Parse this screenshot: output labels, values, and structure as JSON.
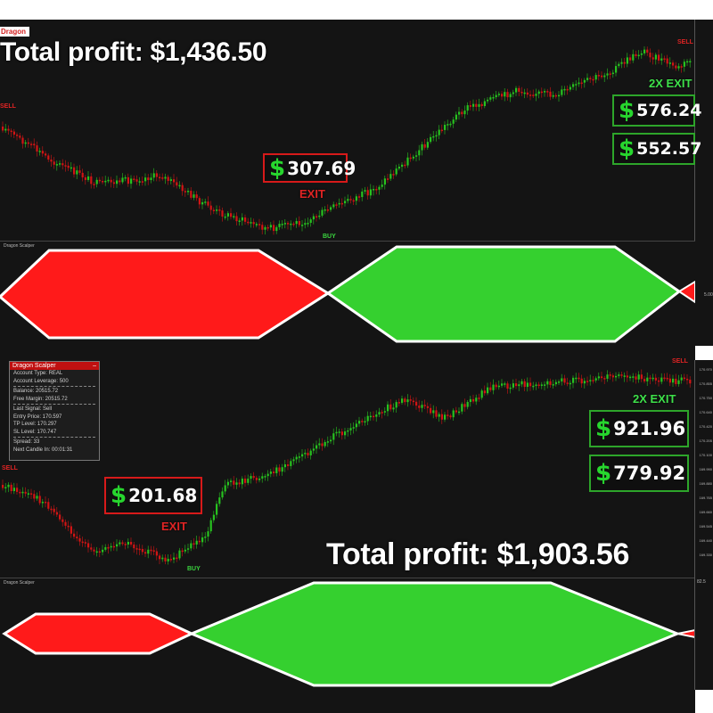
{
  "top": {
    "logo": "Dragon",
    "total_profit": "Total profit: $1,436.50",
    "box_profit": "307.69",
    "box_2x_a": "576.24",
    "box_2x_b": "552.57",
    "exit_label": "EXIT",
    "exit2x_label": "2X EXIT",
    "buy_label": "BUY",
    "sell_label": "SELL",
    "sell_left": "SELL",
    "indicator_name": "Dragon Scalper",
    "ind_value": "5.00"
  },
  "bottom": {
    "total_profit": "Total profit: $1,903.56",
    "box_profit": "201.68",
    "box_2x_a": "921.96",
    "box_2x_b": "779.92",
    "exit_label": "EXIT",
    "exit2x_label": "2X EXIT",
    "buy_label": "BUY",
    "sell_label": "SELL",
    "sell_left": "SELL",
    "indicator_name": "Dragon Scalper",
    "ind_value": "82.5"
  },
  "panel": {
    "title": "Dragon Scalper",
    "account_type": "Account Type: REAL",
    "leverage": "Account Leverage: 500",
    "balance": "Balance: 20515.72",
    "free_margin": "Free Margin: 20515.72",
    "last_signal": "Last Signal: Sell",
    "entry_price": "Entry Price: 170.597",
    "tp_level": "TP Level: 170.297",
    "sl_level": "SL Level: 170.747",
    "spread": "Spread: 33",
    "next_candle": "Next Candle In: 00:01:31"
  },
  "y_ticks_bottom": [
    "170.970",
    "170.855",
    "170.750",
    "170.640",
    "170.420",
    "170.205",
    "170.100",
    "169.990",
    "169.880",
    "169.765",
    "169.660",
    "169.545",
    "169.440",
    "169.330"
  ],
  "colors": {
    "bull": "#27c21f",
    "bear": "#d21414",
    "ind_red": "#ff1a1a",
    "ind_green": "#35d02f",
    "bg": "#141414"
  }
}
